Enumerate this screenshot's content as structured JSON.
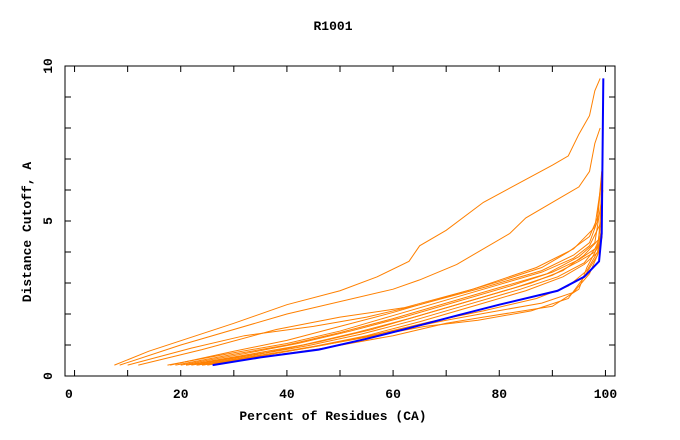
{
  "chart_data": {
    "type": "line",
    "title": "R1001",
    "xlabel": "Percent of Residues (CA)",
    "ylabel": "Distance Cutoff, A",
    "xlim": [
      -1.8,
      101.8
    ],
    "ylim": [
      0,
      10
    ],
    "xticks": [
      0,
      20,
      40,
      60,
      80,
      100
    ],
    "yticks": [
      0,
      5,
      10
    ],
    "grid": false,
    "colors": {
      "models": "#ff8000",
      "highlight": "#0000ff"
    },
    "highlight_series": {
      "points": [
        [
          26,
          0.35
        ],
        [
          35,
          0.6
        ],
        [
          46,
          0.85
        ],
        [
          55,
          1.2
        ],
        [
          62,
          1.5
        ],
        [
          72,
          1.95
        ],
        [
          80,
          2.3
        ],
        [
          91,
          2.75
        ],
        [
          96,
          3.2
        ],
        [
          98.8,
          3.7
        ],
        [
          99.3,
          4.6
        ],
        [
          99.6,
          9.6
        ]
      ]
    },
    "series": [
      {
        "points": [
          [
            7.5,
            0.35
          ],
          [
            14,
            0.8
          ],
          [
            30,
            1.7
          ],
          [
            40,
            2.3
          ],
          [
            50,
            2.75
          ],
          [
            57,
            3.2
          ],
          [
            63,
            3.7
          ],
          [
            65,
            4.2
          ],
          [
            70,
            4.7
          ],
          [
            77,
            5.6
          ],
          [
            90,
            6.8
          ],
          [
            93,
            7.1
          ],
          [
            95,
            7.8
          ],
          [
            97,
            8.4
          ],
          [
            98,
            9.2
          ],
          [
            99,
            9.6
          ]
        ]
      },
      {
        "points": [
          [
            8.5,
            0.35
          ],
          [
            20,
            1.0
          ],
          [
            40,
            2.0
          ],
          [
            60,
            2.8
          ],
          [
            65,
            3.1
          ],
          [
            72,
            3.6
          ],
          [
            82,
            4.6
          ],
          [
            85,
            5.1
          ],
          [
            92,
            5.8
          ],
          [
            95,
            6.1
          ],
          [
            97,
            6.6
          ],
          [
            98,
            7.5
          ],
          [
            99,
            8.0
          ]
        ]
      },
      {
        "points": [
          [
            10,
            0.35
          ],
          [
            22,
            0.9
          ],
          [
            32,
            1.3
          ],
          [
            45,
            1.6
          ],
          [
            55,
            1.9
          ],
          [
            65,
            2.3
          ],
          [
            78,
            2.9
          ],
          [
            88,
            3.4
          ],
          [
            94,
            3.9
          ],
          [
            97,
            4.3
          ],
          [
            98.5,
            5.0
          ],
          [
            99.3,
            6.5
          ],
          [
            99.5,
            7.0
          ]
        ]
      },
      {
        "points": [
          [
            12,
            0.35
          ],
          [
            24,
            0.85
          ],
          [
            38,
            1.5
          ],
          [
            50,
            1.9
          ],
          [
            62,
            2.2
          ],
          [
            75,
            2.8
          ],
          [
            87,
            3.5
          ],
          [
            94,
            4.1
          ],
          [
            98,
            4.8
          ],
          [
            99.2,
            6.2
          ]
        ]
      },
      {
        "points": [
          [
            17.5,
            0.35
          ],
          [
            30,
            0.75
          ],
          [
            40,
            1.05
          ],
          [
            50,
            1.45
          ],
          [
            60,
            1.95
          ],
          [
            70,
            2.45
          ],
          [
            80,
            2.95
          ],
          [
            88,
            3.35
          ],
          [
            94,
            3.8
          ],
          [
            97,
            4.2
          ],
          [
            99,
            4.9
          ],
          [
            99.4,
            6.8
          ]
        ]
      },
      {
        "points": [
          [
            19,
            0.35
          ],
          [
            30,
            0.7
          ],
          [
            40,
            1.0
          ],
          [
            50,
            1.4
          ],
          [
            60,
            1.85
          ],
          [
            70,
            2.35
          ],
          [
            80,
            2.85
          ],
          [
            89,
            3.3
          ],
          [
            95,
            3.85
          ],
          [
            98,
            4.3
          ],
          [
            99.2,
            5.6
          ]
        ]
      },
      {
        "points": [
          [
            20,
            0.35
          ],
          [
            32,
            0.72
          ],
          [
            42,
            1.05
          ],
          [
            52,
            1.45
          ],
          [
            62,
            1.9
          ],
          [
            72,
            2.4
          ],
          [
            82,
            2.9
          ],
          [
            90,
            3.35
          ],
          [
            95,
            3.75
          ],
          [
            98,
            4.1
          ],
          [
            99.3,
            4.6
          ]
        ]
      },
      {
        "points": [
          [
            21,
            0.35
          ],
          [
            33,
            0.7
          ],
          [
            43,
            1.0
          ],
          [
            53,
            1.4
          ],
          [
            63,
            1.85
          ],
          [
            73,
            2.35
          ],
          [
            83,
            2.85
          ],
          [
            90,
            3.25
          ],
          [
            95,
            3.7
          ],
          [
            98,
            4.0
          ],
          [
            99.2,
            4.4
          ]
        ]
      },
      {
        "points": [
          [
            22,
            0.35
          ],
          [
            34,
            0.68
          ],
          [
            44,
            0.98
          ],
          [
            54,
            1.35
          ],
          [
            64,
            1.8
          ],
          [
            74,
            2.3
          ],
          [
            84,
            2.8
          ],
          [
            91,
            3.2
          ],
          [
            96,
            3.65
          ],
          [
            98.5,
            4.2
          ],
          [
            99.4,
            5.2
          ]
        ]
      },
      {
        "points": [
          [
            23,
            0.35
          ],
          [
            35,
            0.67
          ],
          [
            45,
            0.95
          ],
          [
            55,
            1.3
          ],
          [
            65,
            1.75
          ],
          [
            75,
            2.25
          ],
          [
            85,
            2.75
          ],
          [
            92,
            3.2
          ],
          [
            96,
            3.6
          ],
          [
            98.6,
            4.0
          ],
          [
            99.4,
            4.5
          ]
        ]
      },
      {
        "points": [
          [
            21,
            0.35
          ],
          [
            36,
            0.75
          ],
          [
            46,
            1.1
          ],
          [
            56,
            1.5
          ],
          [
            66,
            2.0
          ],
          [
            76,
            2.5
          ],
          [
            86,
            3.0
          ],
          [
            92,
            3.4
          ],
          [
            96,
            3.9
          ],
          [
            98.7,
            4.4
          ],
          [
            99.5,
            6.0
          ]
        ]
      },
      {
        "points": [
          [
            24,
            0.35
          ],
          [
            37,
            0.7
          ],
          [
            47,
            1.0
          ],
          [
            57,
            1.35
          ],
          [
            67,
            1.75
          ],
          [
            77,
            2.1
          ],
          [
            87,
            2.5
          ],
          [
            93,
            2.9
          ],
          [
            96.5,
            3.4
          ],
          [
            98.5,
            4.0
          ],
          [
            99.3,
            4.8
          ]
        ]
      },
      {
        "points": [
          [
            23,
            0.35
          ],
          [
            40,
            0.8
          ],
          [
            50,
            1.1
          ],
          [
            60,
            1.45
          ],
          [
            70,
            1.8
          ],
          [
            78,
            2.05
          ],
          [
            88,
            2.35
          ],
          [
            94,
            2.7
          ],
          [
            97,
            3.3
          ],
          [
            99,
            4.1
          ]
        ]
      },
      {
        "points": [
          [
            24,
            0.35
          ],
          [
            47,
            0.9
          ],
          [
            60,
            1.3
          ],
          [
            70,
            1.7
          ],
          [
            77,
            1.9
          ],
          [
            90,
            2.25
          ],
          [
            95,
            2.8
          ],
          [
            96.5,
            3.5
          ],
          [
            99,
            4.3
          ]
        ]
      },
      {
        "points": [
          [
            25,
            0.35
          ],
          [
            42,
            0.85
          ],
          [
            55,
            1.25
          ],
          [
            66,
            1.6
          ],
          [
            76,
            1.8
          ],
          [
            86,
            2.1
          ],
          [
            93,
            2.5
          ],
          [
            96,
            3.2
          ],
          [
            98.5,
            3.9
          ],
          [
            99.3,
            4.7
          ]
        ]
      },
      {
        "points": [
          [
            18,
            0.35
          ],
          [
            30,
            0.8
          ],
          [
            40,
            1.15
          ],
          [
            50,
            1.6
          ],
          [
            60,
            2.05
          ],
          [
            70,
            2.55
          ],
          [
            80,
            3.05
          ],
          [
            88,
            3.5
          ],
          [
            93,
            4.0
          ],
          [
            97,
            4.5
          ],
          [
            98.5,
            5.1
          ],
          [
            99.3,
            6.6
          ]
        ]
      }
    ]
  }
}
